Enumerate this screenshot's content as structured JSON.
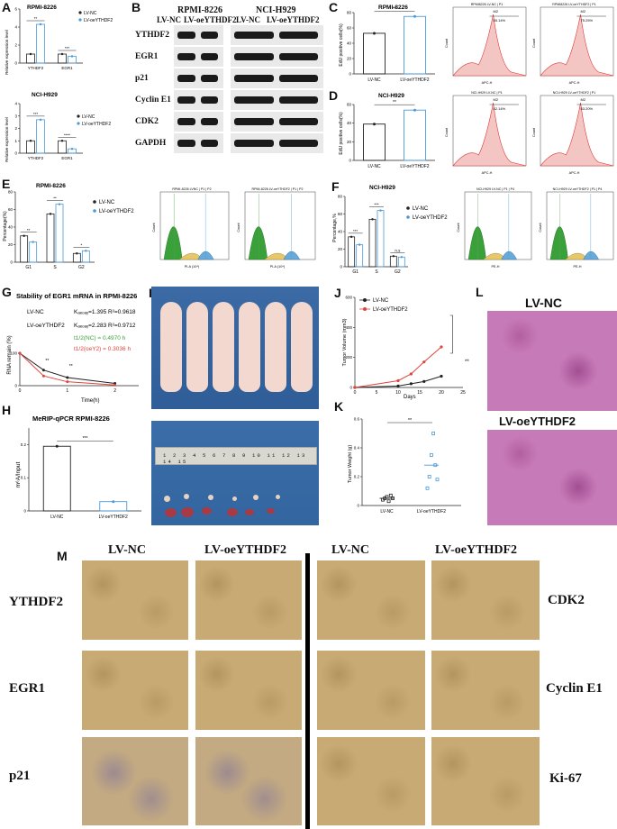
{
  "panels": {
    "A": "A",
    "B": "B",
    "C": "C",
    "D": "D",
    "E": "E",
    "F": "F",
    "G": "G",
    "H": "H",
    "I": "I",
    "J": "J",
    "K": "K",
    "L": "L",
    "M": "M"
  },
  "colors": {
    "nc": "#222222",
    "oe": "#4a9ad8",
    "red": "#e0443c",
    "green": "#3aa13a"
  },
  "legend": {
    "nc": "LV-NC",
    "oe": "LV-oeYTHDF2"
  },
  "A": {
    "top_title": "RPMI-8226",
    "bottom_title": "NCI-H929",
    "ylabel": "Relative expression level",
    "genes": [
      "YTHDF2",
      "EGR1"
    ]
  },
  "B": {
    "cell1": "RPMI-8226",
    "cell2": "NCI-H929",
    "col_nc": "LV-NC",
    "col_oe": "LV-oeYTHDF2",
    "proteins": [
      "YTHDF2",
      "EGR1",
      "p21",
      "Cyclin E1",
      "CDK2",
      "GAPDH"
    ]
  },
  "C": {
    "title": "RPMI-8226",
    "ylabel": "EdU positive cells(%)",
    "flow1_title": "RPMI8226 LV-NC | P1",
    "flow2_title": "RPMI8226 LV-oeYTHDF2 | P1",
    "gate1": "M2\n55.14%",
    "gate2": "M2\n75.25%",
    "gate1_name": "M2",
    "gate1_pct": "55.14%",
    "gate2_name": "M2",
    "gate2_pct": "75.25%",
    "xaxis": "APC-H",
    "yaxis": "Count"
  },
  "D": {
    "title": "NCI-H929",
    "ylabel": "EdU positive cells(%)",
    "flow1_title": "NCI-H929 LV-NC | P1",
    "flow2_title": "NCI-H929 LV-oeYTHDF2 | P1",
    "gate1_name": "M2",
    "gate1_pct": "42.14%",
    "gate2_name": "M2",
    "gate2_pct": "53.20%",
    "xaxis": "APC-H",
    "yaxis": "Count"
  },
  "E": {
    "title": "RPMI-8226",
    "ylabel": "Percentage(%)",
    "flow1_title": "RPMI-8226 LVNC | P1 | P2",
    "flow2_title": "RPMI-8226 LV-oeYTHDF2 | P1 | P2",
    "xaxis": "PI-A (10⁴)",
    "yaxis": "Count"
  },
  "F": {
    "title": "NCI-H929",
    "ylabel": "Percentage,%",
    "flow1_title": "NCI-H929 LV-NC | P1 | P4",
    "flow2_title": "NCI-H929 LV-oeYTHDF2 | P1 | P4",
    "xaxis": "PE-H",
    "yaxis": "Count",
    "ns": "n.s"
  },
  "G": {
    "title": "Stability of EGR1 mRNA in RPMI-8226",
    "ylabel": "RNA remain (%)",
    "xlabel": "Time(h)",
    "label_nc": "LV-NC",
    "label_oe": "LV-oeYTHDF2",
    "kdecay_nc": "Kₐₑₒₐᵧ=1.395 R²=0.9618",
    "kdecay_oe": "Kₐₑₒₐᵧ=2.283 R²=0.9712",
    "half_nc": "t1/2(NC)   = 0.4970 h",
    "half_oe": "t1/2(oeY2) = 0.3036 h"
  },
  "H": {
    "title": "MeRIP-qPCR   RPMI-8226",
    "ylabel": "m⁶A/Input",
    "sig": "***"
  },
  "I": {
    "ruler_label": "1 2 3 4 5 6 7 8 9 10 11 12 13 14 15"
  },
  "J": {
    "ylabel": "Tumor Volume (mm3)",
    "xlabel": "Days",
    "sig": "**"
  },
  "K": {
    "ylabel": "Tumor Weight (g)",
    "sig": "**"
  },
  "L": {
    "label_nc": "LV-NC",
    "label_oe": "LV-oeYTHDF2"
  },
  "M": {
    "col_nc_1": "LV-NC",
    "col_oe_1": "LV-oeYTHDF2",
    "col_nc_2": "LV-NC",
    "col_oe_2": "LV-oeYTHDF2",
    "left_rows": [
      "YTHDF2",
      "EGR1",
      "p21"
    ],
    "right_rows": [
      "CDK2",
      "Cyclin  E1",
      "Ki-67"
    ]
  },
  "chart_data": [
    {
      "id": "A-top",
      "type": "bar",
      "title": "RPMI-8226",
      "ylabel": "Relative expression level",
      "categories": [
        "YTHDF2",
        "EGR1"
      ],
      "series": [
        {
          "name": "LV-NC",
          "values": [
            1.0,
            1.0
          ]
        },
        {
          "name": "LV-oeYTHDF2",
          "values": [
            4.3,
            0.75
          ]
        }
      ],
      "ylim": [
        0,
        6
      ],
      "significance": [
        "**",
        "***"
      ]
    },
    {
      "id": "A-bottom",
      "type": "bar",
      "title": "NCI-H929",
      "ylabel": "Relative expression level",
      "categories": [
        "YTHDF2",
        "EGR1"
      ],
      "series": [
        {
          "name": "LV-NC",
          "values": [
            1.0,
            1.0
          ]
        },
        {
          "name": "LV-oeYTHDF2",
          "values": [
            2.7,
            0.35
          ]
        }
      ],
      "ylim": [
        0,
        4
      ],
      "significance": [
        "***",
        "****"
      ]
    },
    {
      "id": "C",
      "type": "bar",
      "title": "RPMI-8226",
      "ylabel": "EdU positive cells(%)",
      "categories": [
        "LV-NC",
        "LV-oeYTHDF2"
      ],
      "values": [
        53,
        75
      ],
      "ylim": [
        0,
        80
      ],
      "significance": "**"
    },
    {
      "id": "D",
      "type": "bar",
      "title": "NCI-H929",
      "ylabel": "EdU positive cells(%)",
      "categories": [
        "LV-NC",
        "LV-oeYTHDF2"
      ],
      "values": [
        39,
        54
      ],
      "ylim": [
        0,
        60
      ],
      "significance": "**"
    },
    {
      "id": "E",
      "type": "bar",
      "title": "RPMI-8226",
      "ylabel": "Percentage(%)",
      "categories": [
        "G1",
        "S",
        "G2"
      ],
      "series": [
        {
          "name": "LV-NC",
          "values": [
            30,
            55,
            10
          ]
        },
        {
          "name": "LV-oeYTHDF2",
          "values": [
            23,
            66,
            13
          ]
        }
      ],
      "ylim": [
        0,
        80
      ],
      "significance": [
        "**",
        "**",
        "*"
      ]
    },
    {
      "id": "F",
      "type": "bar",
      "title": "NCI-H929",
      "ylabel": "Percentage,%",
      "categories": [
        "G1",
        "S",
        "G2"
      ],
      "series": [
        {
          "name": "LV-NC",
          "values": [
            34,
            54,
            12
          ]
        },
        {
          "name": "LV-oeYTHDF2",
          "values": [
            25,
            64,
            11
          ]
        }
      ],
      "ylim": [
        0,
        80
      ],
      "significance": [
        "***",
        "***",
        "n.s"
      ]
    },
    {
      "id": "G",
      "type": "line",
      "title": "Stability of EGR1 mRNA in RPMI-8226",
      "xlabel": "Time(h)",
      "ylabel": "RNA remain (%)",
      "x": [
        0,
        0.5,
        1.0,
        2.0
      ],
      "series": [
        {
          "name": "LV-NC",
          "values": [
            100,
            48,
            25,
            7
          ]
        },
        {
          "name": "LV-oeYTHDF2",
          "values": [
            100,
            30,
            12,
            2
          ]
        }
      ],
      "xlim": [
        0,
        2.5
      ],
      "ylim": [
        0,
        100
      ],
      "significance": [
        "**",
        "**"
      ]
    },
    {
      "id": "H",
      "type": "bar",
      "title": "MeRIP-qPCR   RPMI-8226",
      "ylabel": "m6A/Input",
      "categories": [
        "LV-NC",
        "LV-oeYTHDF2"
      ],
      "values": [
        0.195,
        0.028
      ],
      "ylim": [
        0,
        0.25
      ],
      "significance": "***"
    },
    {
      "id": "J",
      "type": "line",
      "xlabel": "Days",
      "ylabel": "Tumor Volume (mm3)",
      "x": [
        0,
        10,
        13,
        16,
        20
      ],
      "series": [
        {
          "name": "LV-NC",
          "values": [
            0,
            10,
            25,
            40,
            75
          ]
        },
        {
          "name": "LV-oeYTHDF2",
          "values": [
            0,
            45,
            90,
            170,
            270
          ]
        }
      ],
      "xlim": [
        0,
        25
      ],
      "ylim": [
        0,
        600
      ],
      "significance": "**"
    },
    {
      "id": "K",
      "type": "scatter",
      "ylabel": "Tumor Weight (g)",
      "categories": [
        "LV-NC",
        "LV-oeYTHDF2"
      ],
      "values": [
        0.05,
        0.28
      ],
      "ylim": [
        0,
        0.6
      ],
      "significance": "**"
    }
  ]
}
